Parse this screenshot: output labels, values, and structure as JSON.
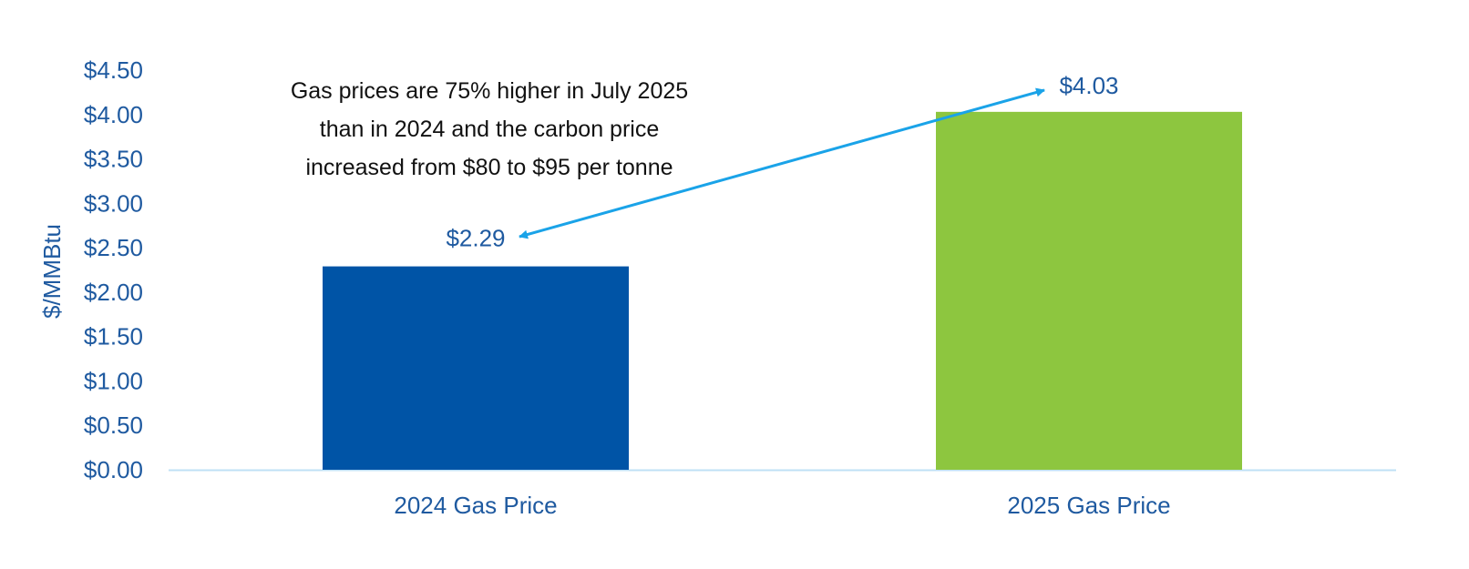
{
  "chart_data": {
    "type": "bar",
    "categories": [
      "2024 Gas Price",
      "2025 Gas Price"
    ],
    "values": [
      2.29,
      4.03
    ],
    "value_labels": [
      "$2.29",
      "$4.03"
    ],
    "title": "",
    "xlabel": "",
    "ylabel": "$/MMBtu",
    "ylim": [
      0,
      4.5
    ],
    "yticks": [
      0,
      0.5,
      1,
      1.5,
      2,
      2.5,
      3,
      3.5,
      4,
      4.5
    ],
    "ytick_labels": [
      "$0.00",
      "$0.50",
      "$1.00",
      "$1.50",
      "$2.00",
      "$2.50",
      "$3.00",
      "$3.50",
      "$4.00",
      "$4.50"
    ],
    "grid": false,
    "legend": "none",
    "bar_colors": [
      "#0054a6",
      "#8dc63f"
    ],
    "axis_color": "#bfe0f5",
    "text_color": "#1f5aa0",
    "annotation": {
      "lines": [
        "Gas prices are 75% higher in July 2025",
        "than in 2024 and the carbon price",
        "increased from $80 to $95 per tonne"
      ],
      "arrow": "double-headed",
      "arrow_color": "#1aa3e8",
      "connects": [
        "$2.29",
        "$4.03"
      ]
    }
  }
}
